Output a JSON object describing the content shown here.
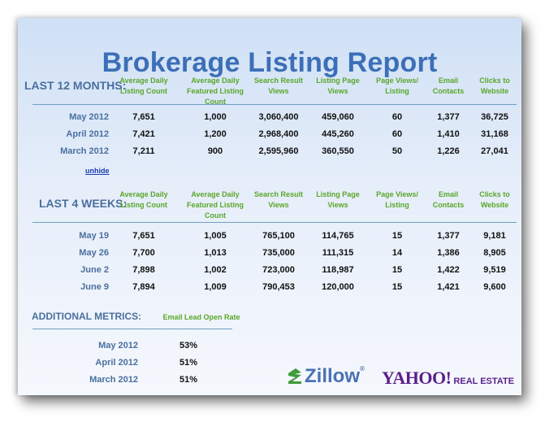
{
  "title": "Brokerage Listing Report",
  "columns": [
    "Average Daily Listing Count",
    "Average Daily Featured Listing Count",
    "Search Result Views",
    "Listing Page Views",
    "Page Views/ Listing",
    "Email Contacts",
    "Clicks to Website"
  ],
  "section1": {
    "label": "LAST 12 MONTHS:",
    "rows": [
      {
        "label": "May 2012",
        "values": [
          "7,651",
          "1,000",
          "3,060,400",
          "459,060",
          "60",
          "1,377",
          "36,725"
        ]
      },
      {
        "label": "April 2012",
        "values": [
          "7,421",
          "1,200",
          "2,968,400",
          "445,260",
          "60",
          "1,410",
          "31,168"
        ]
      },
      {
        "label": "March 2012",
        "values": [
          "7,211",
          "900",
          "2,595,960",
          "360,550",
          "50",
          "1,226",
          "27,041"
        ]
      }
    ],
    "unhide_link": "unhide"
  },
  "section2": {
    "label": "LAST 4 WEEKS:",
    "rows": [
      {
        "label": "May 19",
        "values": [
          "7,651",
          "1,005",
          "765,100",
          "114,765",
          "15",
          "1,377",
          "9,181"
        ]
      },
      {
        "label": "May 26",
        "values": [
          "7,700",
          "1,013",
          "735,000",
          "111,315",
          "14",
          "1,386",
          "8,905"
        ]
      },
      {
        "label": "June 2",
        "values": [
          "7,898",
          "1,002",
          "723,000",
          "118,987",
          "15",
          "1,422",
          "9,519"
        ]
      },
      {
        "label": "June 9",
        "values": [
          "7,894",
          "1,009",
          "790,453",
          "120,000",
          "15",
          "1,421",
          "9,600"
        ]
      }
    ]
  },
  "section3": {
    "label": "ADDITIONAL METRICS:",
    "column": "Email Lead Open Rate",
    "rows": [
      {
        "label": "May 2012",
        "value": "53%"
      },
      {
        "label": "April 2012",
        "value": "51%"
      },
      {
        "label": "March 2012",
        "value": "51%"
      }
    ]
  },
  "logos": {
    "zillow": "Zillow",
    "zillow_reg": "®",
    "yahoo": "YAHOO!",
    "yahoo_suffix": "REAL ESTATE"
  },
  "colors": {
    "title": "#3c6fb7",
    "header": "#5aa62a",
    "label": "#4a6f9e",
    "rule": "#6fa0c4"
  }
}
